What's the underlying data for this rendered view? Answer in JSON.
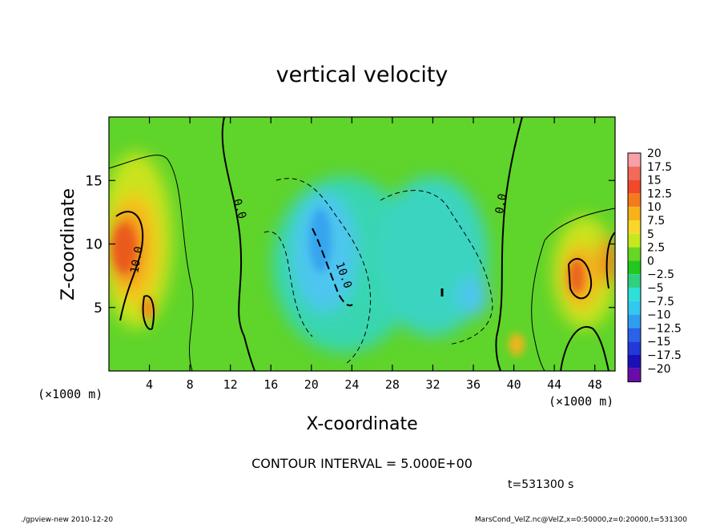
{
  "chart_data": {
    "type": "heatmap",
    "title": "vertical velocity",
    "xlabel": "X-coordinate",
    "ylabel": "Z-coordinate",
    "x_unit_left": "(×1000 m)",
    "x_unit_right": "(×1000 m)",
    "xlim": [
      0,
      50
    ],
    "ylim": [
      0,
      20
    ],
    "x_ticks": [
      "4",
      "8",
      "12",
      "16",
      "20",
      "24",
      "28",
      "32",
      "36",
      "40",
      "44",
      "48"
    ],
    "y_ticks": [
      "5",
      "10",
      "15"
    ],
    "colorbar": {
      "labels": [
        "20",
        "17.5",
        "15",
        "12.5",
        "10",
        "7.5",
        "5",
        "2.5",
        "0",
        "−2.5",
        "−5",
        "−7.5",
        "−10",
        "−12.5",
        "−15",
        "−17.5",
        "−20"
      ],
      "colors": [
        "#f7a0a8",
        "#f26a5a",
        "#f04a2a",
        "#f37b1e",
        "#f7b21a",
        "#f9d72a",
        "#c7e81f",
        "#67d624",
        "#22c81f",
        "#2fd07f",
        "#2fe0d6",
        "#33c8f0",
        "#2f9ef0",
        "#2a62e8",
        "#2338d8",
        "#1b10b5",
        "#6a0ca8"
      ]
    },
    "contour_labels": [
      "0.0",
      "0.0",
      "10.0",
      "10.0"
    ],
    "contour_interval_label": "CONTOUR INTERVAL = 5.000E+00",
    "time_label": "t=531300 s",
    "footer_left": "./gpview-new  2010-12-20",
    "footer_right": "MarsCond_VelZ.nc@VelZ,x=0:50000,z=0:20000,t=531300"
  }
}
